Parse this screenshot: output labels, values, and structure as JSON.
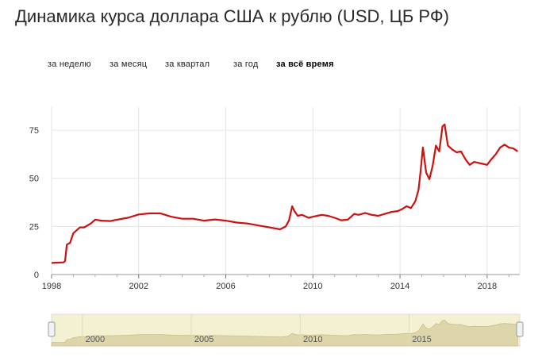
{
  "title": "Динамика курса доллара США к рублю (USD, ЦБ РФ)",
  "tabs": [
    {
      "label": "за неделю",
      "active": false
    },
    {
      "label": "за месяц",
      "active": false
    },
    {
      "label": "за квартал",
      "active": false
    },
    {
      "label": "за год",
      "active": false
    },
    {
      "label": "за всё время",
      "active": true
    }
  ],
  "colors": {
    "line": "#cc1111",
    "grid": "#e6e6e6",
    "navigator_bg": "#f4f0d2",
    "navigator_area": "#ddd6aa"
  },
  "chart_data": {
    "type": "line",
    "title": "Динамика курса доллара США к рублю (USD, ЦБ РФ)",
    "xlabel": "",
    "ylabel": "",
    "xlim": [
      1998.0,
      2019.5
    ],
    "ylim": [
      0,
      87
    ],
    "grid": true,
    "x_ticks": [
      1998,
      2002,
      2006,
      2010,
      2014,
      2018
    ],
    "y_ticks": [
      0,
      25,
      50,
      75
    ],
    "series": [
      {
        "x": [
          1998.0,
          1998.55,
          1998.62,
          1998.7,
          1998.85,
          1999.0,
          1999.3,
          1999.5,
          1999.8,
          2000.0,
          2000.3,
          2000.7,
          2001.0,
          2001.5,
          2002.0,
          2002.5,
          2003.0,
          2003.5,
          2004.0,
          2004.5,
          2005.0,
          2005.5,
          2006.0,
          2006.5,
          2007.0,
          2007.5,
          2008.0,
          2008.5,
          2008.75,
          2008.9,
          2009.05,
          2009.15,
          2009.3,
          2009.5,
          2009.8,
          2010.0,
          2010.2,
          2010.4,
          2010.7,
          2011.0,
          2011.3,
          2011.6,
          2011.9,
          2012.1,
          2012.4,
          2012.7,
          2013.0,
          2013.3,
          2013.6,
          2013.9,
          2014.1,
          2014.3,
          2014.5,
          2014.7,
          2014.85,
          2014.95,
          2015.05,
          2015.2,
          2015.35,
          2015.5,
          2015.65,
          2015.8,
          2015.95,
          2016.05,
          2016.2,
          2016.4,
          2016.6,
          2016.8,
          2017.0,
          2017.2,
          2017.4,
          2017.6,
          2017.8,
          2018.0,
          2018.2,
          2018.4,
          2018.6,
          2018.8,
          2019.0,
          2019.2,
          2019.4
        ],
        "y": [
          6.0,
          6.3,
          7.0,
          15.5,
          16.5,
          21.5,
          24.5,
          24.5,
          26.5,
          28.5,
          28.0,
          27.8,
          28.5,
          29.5,
          31.2,
          31.8,
          31.8,
          30.0,
          29.0,
          29.0,
          28.0,
          28.6,
          28.0,
          27.0,
          26.5,
          25.5,
          24.5,
          23.5,
          25.0,
          28.0,
          35.5,
          33.0,
          30.5,
          31.0,
          29.5,
          30.0,
          30.5,
          31.0,
          30.5,
          29.5,
          28.2,
          28.5,
          31.5,
          31.0,
          32.0,
          31.0,
          30.5,
          31.5,
          32.5,
          33.0,
          34.0,
          35.5,
          34.5,
          38.0,
          44.0,
          54.0,
          66.0,
          53.0,
          49.5,
          56.5,
          67.0,
          64.0,
          77.0,
          78.0,
          67.0,
          65.0,
          63.5,
          64.0,
          60.0,
          57.0,
          58.5,
          58.0,
          57.5,
          57.0,
          60.0,
          62.5,
          66.0,
          67.5,
          66.0,
          65.5,
          64.0
        ]
      }
    ],
    "navigator": {
      "labels": [
        2000,
        2005,
        2010,
        2015
      ]
    }
  }
}
